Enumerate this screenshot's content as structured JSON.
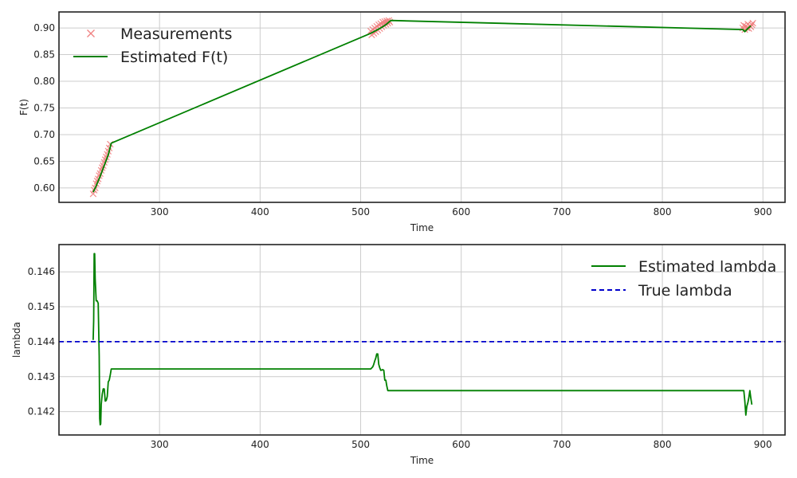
{
  "chart_data": [
    {
      "type": "line",
      "title": "",
      "xlabel": "Time",
      "ylabel": "F(t)",
      "xlim": [
        200,
        922
      ],
      "ylim": [
        0.573,
        0.93
      ],
      "xticks": [
        300,
        400,
        500,
        600,
        700,
        800,
        900
      ],
      "yticks": [
        0.6,
        0.65,
        0.7,
        0.75,
        0.8,
        0.85,
        0.9
      ],
      "ytick_labels": [
        "0.60",
        "0.65",
        "0.70",
        "0.75",
        "0.80",
        "0.85",
        "0.90"
      ],
      "grid": true,
      "legend_position": "top-left",
      "series": [
        {
          "name": "Measurements",
          "kind": "scatter",
          "marker": "x",
          "color": "#f08080",
          "x": [
            234,
            235,
            236,
            237,
            238,
            239,
            240,
            241,
            242,
            243,
            244,
            245,
            246,
            247,
            248,
            249,
            250,
            251,
            510,
            511,
            512,
            513,
            514,
            515,
            516,
            517,
            518,
            519,
            520,
            521,
            522,
            523,
            524,
            525,
            526,
            527,
            528,
            529,
            880,
            881,
            882,
            883,
            884,
            885,
            886,
            887,
            888,
            889,
            890
          ],
          "y": [
            0.589,
            0.596,
            0.6,
            0.608,
            0.613,
            0.617,
            0.623,
            0.627,
            0.633,
            0.638,
            0.642,
            0.648,
            0.653,
            0.658,
            0.663,
            0.669,
            0.675,
            0.682,
            0.894,
            0.887,
            0.897,
            0.89,
            0.9,
            0.893,
            0.903,
            0.896,
            0.906,
            0.899,
            0.908,
            0.902,
            0.911,
            0.905,
            0.912,
            0.907,
            0.913,
            0.909,
            0.914,
            0.911,
            0.9,
            0.905,
            0.897,
            0.903,
            0.9,
            0.907,
            0.899,
            0.904,
            0.902,
            0.906,
            0.909
          ]
        },
        {
          "name": "Estimated F(t)",
          "kind": "line",
          "color": "#008000",
          "x": [
            234,
            237,
            241,
            245,
            249,
            252,
            510,
            515,
            520,
            525,
            530,
            880,
            882,
            885,
            888
          ],
          "y": [
            0.592,
            0.604,
            0.622,
            0.642,
            0.662,
            0.684,
            0.89,
            0.895,
            0.9,
            0.906,
            0.914,
            0.897,
            0.893,
            0.899,
            0.904
          ]
        }
      ]
    },
    {
      "type": "line",
      "title": "",
      "xlabel": "Time",
      "ylabel": "lambda",
      "xlim": [
        200,
        922
      ],
      "ylim": [
        0.14133,
        0.14678
      ],
      "xticks": [
        300,
        400,
        500,
        600,
        700,
        800,
        900
      ],
      "yticks": [
        0.142,
        0.143,
        0.144,
        0.145,
        0.146
      ],
      "ytick_labels": [
        "0.142",
        "0.143",
        "0.144",
        "0.145",
        "0.146"
      ],
      "grid": true,
      "legend_position": "top-right",
      "series": [
        {
          "name": "Estimated lambda",
          "kind": "line",
          "color": "#008000",
          "x": [
            234,
            234.5,
            235,
            235.5,
            236,
            237,
            238,
            239,
            240,
            240.5,
            241,
            241.5,
            242,
            243,
            244,
            245,
            246,
            247,
            248,
            249,
            250,
            251,
            252,
            253,
            510,
            512,
            513,
            514,
            515,
            516,
            517,
            518,
            519,
            520,
            522,
            523,
            524,
            525,
            526,
            527,
            528,
            880,
            881,
            882,
            883,
            884,
            885,
            886,
            887,
            888,
            889
          ],
          "y": [
            0.14405,
            0.1446,
            0.14652,
            0.14652,
            0.1458,
            0.14517,
            0.14517,
            0.1451,
            0.1436,
            0.1418,
            0.14162,
            0.14165,
            0.1422,
            0.1425,
            0.14265,
            0.14265,
            0.1423,
            0.14232,
            0.14243,
            0.14285,
            0.1429,
            0.14305,
            0.14322,
            0.14322,
            0.14322,
            0.14328,
            0.14335,
            0.14345,
            0.14353,
            0.14365,
            0.14365,
            0.14335,
            0.14325,
            0.14318,
            0.1432,
            0.14318,
            0.1429,
            0.1429,
            0.14273,
            0.1426,
            0.1426,
            0.1426,
            0.1426,
            0.1423,
            0.1419,
            0.14215,
            0.14225,
            0.1424,
            0.1426,
            0.14238,
            0.1422
          ]
        },
        {
          "name": "True lambda",
          "kind": "line",
          "dashed": true,
          "color": "#0000cc",
          "x": [
            200,
            922
          ],
          "y": [
            0.144,
            0.144
          ]
        }
      ]
    }
  ]
}
